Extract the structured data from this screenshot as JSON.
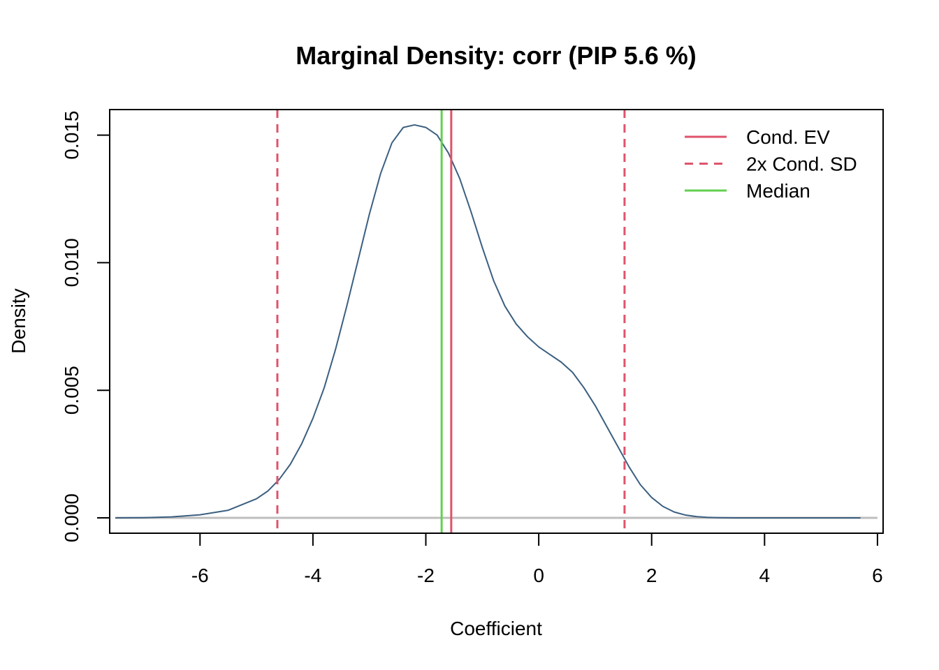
{
  "chart_data": {
    "type": "line",
    "title": "Marginal Density: corr (PIP 5.6 %)",
    "xlabel": "Coefficient",
    "ylabel": "Density",
    "xlim": [
      -7.6,
      6.1
    ],
    "ylim": [
      -0.0006,
      0.016
    ],
    "x_ticks": [
      -6,
      -4,
      -2,
      0,
      2,
      4,
      6
    ],
    "x_tick_labels": [
      "-6",
      "-4",
      "-2",
      "0",
      "2",
      "4",
      "6"
    ],
    "y_ticks": [
      0,
      0.005,
      0.01,
      0.015
    ],
    "y_tick_labels": [
      "0.000",
      "0.005",
      "0.010",
      "0.015"
    ],
    "grid": false,
    "legend_position": "top-right",
    "series": [
      {
        "name": "",
        "color": "#3b5f80",
        "x": [
          -7.5,
          -7.0,
          -6.5,
          -6.0,
          -5.5,
          -5.0,
          -4.8,
          -4.6,
          -4.4,
          -4.2,
          -4.0,
          -3.8,
          -3.6,
          -3.4,
          -3.2,
          -3.0,
          -2.8,
          -2.6,
          -2.4,
          -2.2,
          -2.0,
          -1.8,
          -1.6,
          -1.4,
          -1.2,
          -1.0,
          -0.8,
          -0.6,
          -0.4,
          -0.2,
          0.0,
          0.2,
          0.4,
          0.6,
          0.8,
          1.0,
          1.2,
          1.4,
          1.6,
          1.8,
          2.0,
          2.2,
          2.4,
          2.6,
          2.8,
          3.0,
          3.2,
          3.5,
          4.0,
          4.5,
          5.0,
          5.7
        ],
        "y": [
          0.0,
          1e-05,
          4e-05,
          0.00012,
          0.0003,
          0.00075,
          0.00105,
          0.0015,
          0.0021,
          0.0029,
          0.0039,
          0.0051,
          0.0066,
          0.0083,
          0.0101,
          0.0119,
          0.0135,
          0.0147,
          0.0153,
          0.0154,
          0.0153,
          0.015,
          0.0143,
          0.0133,
          0.012,
          0.0106,
          0.0093,
          0.0083,
          0.0076,
          0.0071,
          0.0067,
          0.0064,
          0.0061,
          0.0057,
          0.0051,
          0.0044,
          0.0036,
          0.0028,
          0.002,
          0.0013,
          0.0008,
          0.00045,
          0.00023,
          0.00011,
          5e-05,
          2e-05,
          1e-05,
          0.0,
          0.0,
          0.0,
          0.0,
          0.0
        ]
      }
    ],
    "baseline": {
      "y": 0.0,
      "x_range": [
        -7.5,
        6.0
      ],
      "color": "#bebebe"
    },
    "vertical_lines": [
      {
        "legend": "Cond. EV",
        "x": -1.55,
        "color": "#df536b",
        "style": "solid"
      },
      {
        "legend": "2x Cond. SD",
        "x": -4.63,
        "color": "#df536b",
        "style": "dashed"
      },
      {
        "legend": "2x Cond. SD",
        "x": 1.52,
        "color": "#df536b",
        "style": "dashed"
      },
      {
        "legend": "Median",
        "x": -1.72,
        "color": "#61d04f",
        "style": "solid"
      }
    ],
    "legend": [
      {
        "label": "Cond. EV",
        "color": "#df536b",
        "style": "solid"
      },
      {
        "label": "2x Cond. SD",
        "color": "#df536b",
        "style": "dashed"
      },
      {
        "label": "Median",
        "color": "#61d04f",
        "style": "solid"
      }
    ]
  }
}
